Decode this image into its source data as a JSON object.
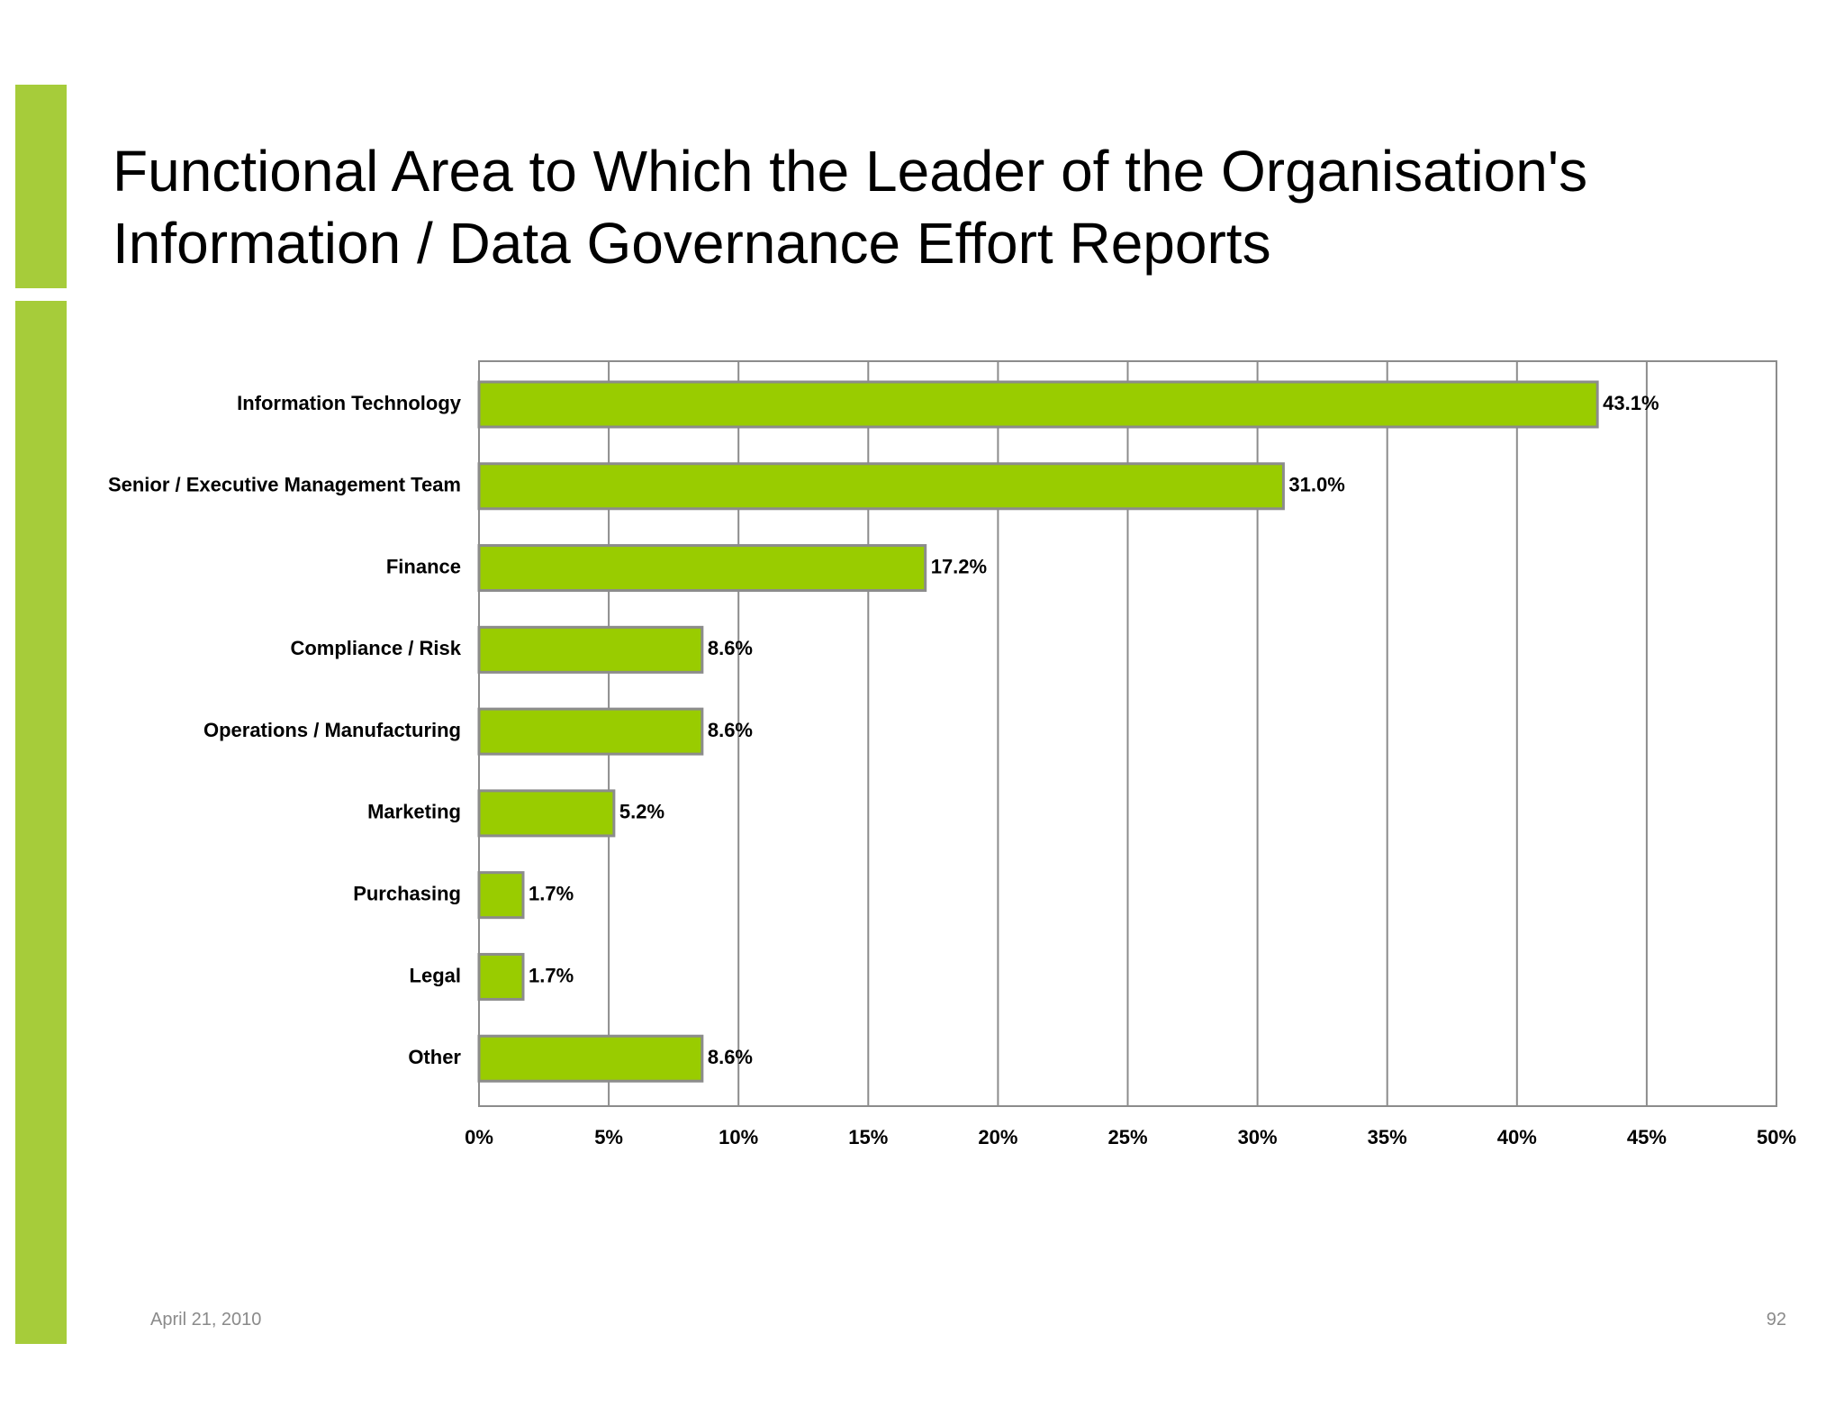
{
  "slide": {
    "title_line1": "Functional Area to Which the Leader of the Organisation's",
    "title_line2": "Information / Data Governance Effort Reports",
    "date": "April 21, 2010",
    "page_number": "92"
  },
  "colors": {
    "accent": "#a6cc3a",
    "bar_fill": "#99cc00",
    "bar_stroke": "#8c8c8c",
    "gridline": "#8c8c8c"
  },
  "chart_data": {
    "type": "bar",
    "orientation": "horizontal",
    "title": "",
    "xlabel": "",
    "ylabel": "",
    "categories": [
      "Information Technology",
      "Senior / Executive Management Team",
      "Finance",
      "Compliance / Risk",
      "Operations / Manufacturing",
      "Marketing",
      "Purchasing",
      "Legal",
      "Other"
    ],
    "values": [
      43.1,
      31.0,
      17.2,
      8.6,
      8.6,
      5.2,
      1.7,
      1.7,
      8.6
    ],
    "data_labels": [
      "43.1%",
      "31.0%",
      "17.2%",
      "8.6%",
      "8.6%",
      "5.2%",
      "1.7%",
      "1.7%",
      "8.6%"
    ],
    "xlim": [
      0,
      50
    ],
    "x_ticks": [
      0,
      5,
      10,
      15,
      20,
      25,
      30,
      35,
      40,
      45,
      50
    ],
    "x_tick_labels": [
      "0%",
      "5%",
      "10%",
      "15%",
      "20%",
      "25%",
      "30%",
      "35%",
      "40%",
      "45%",
      "50%"
    ],
    "grid": true,
    "legend": "none"
  }
}
